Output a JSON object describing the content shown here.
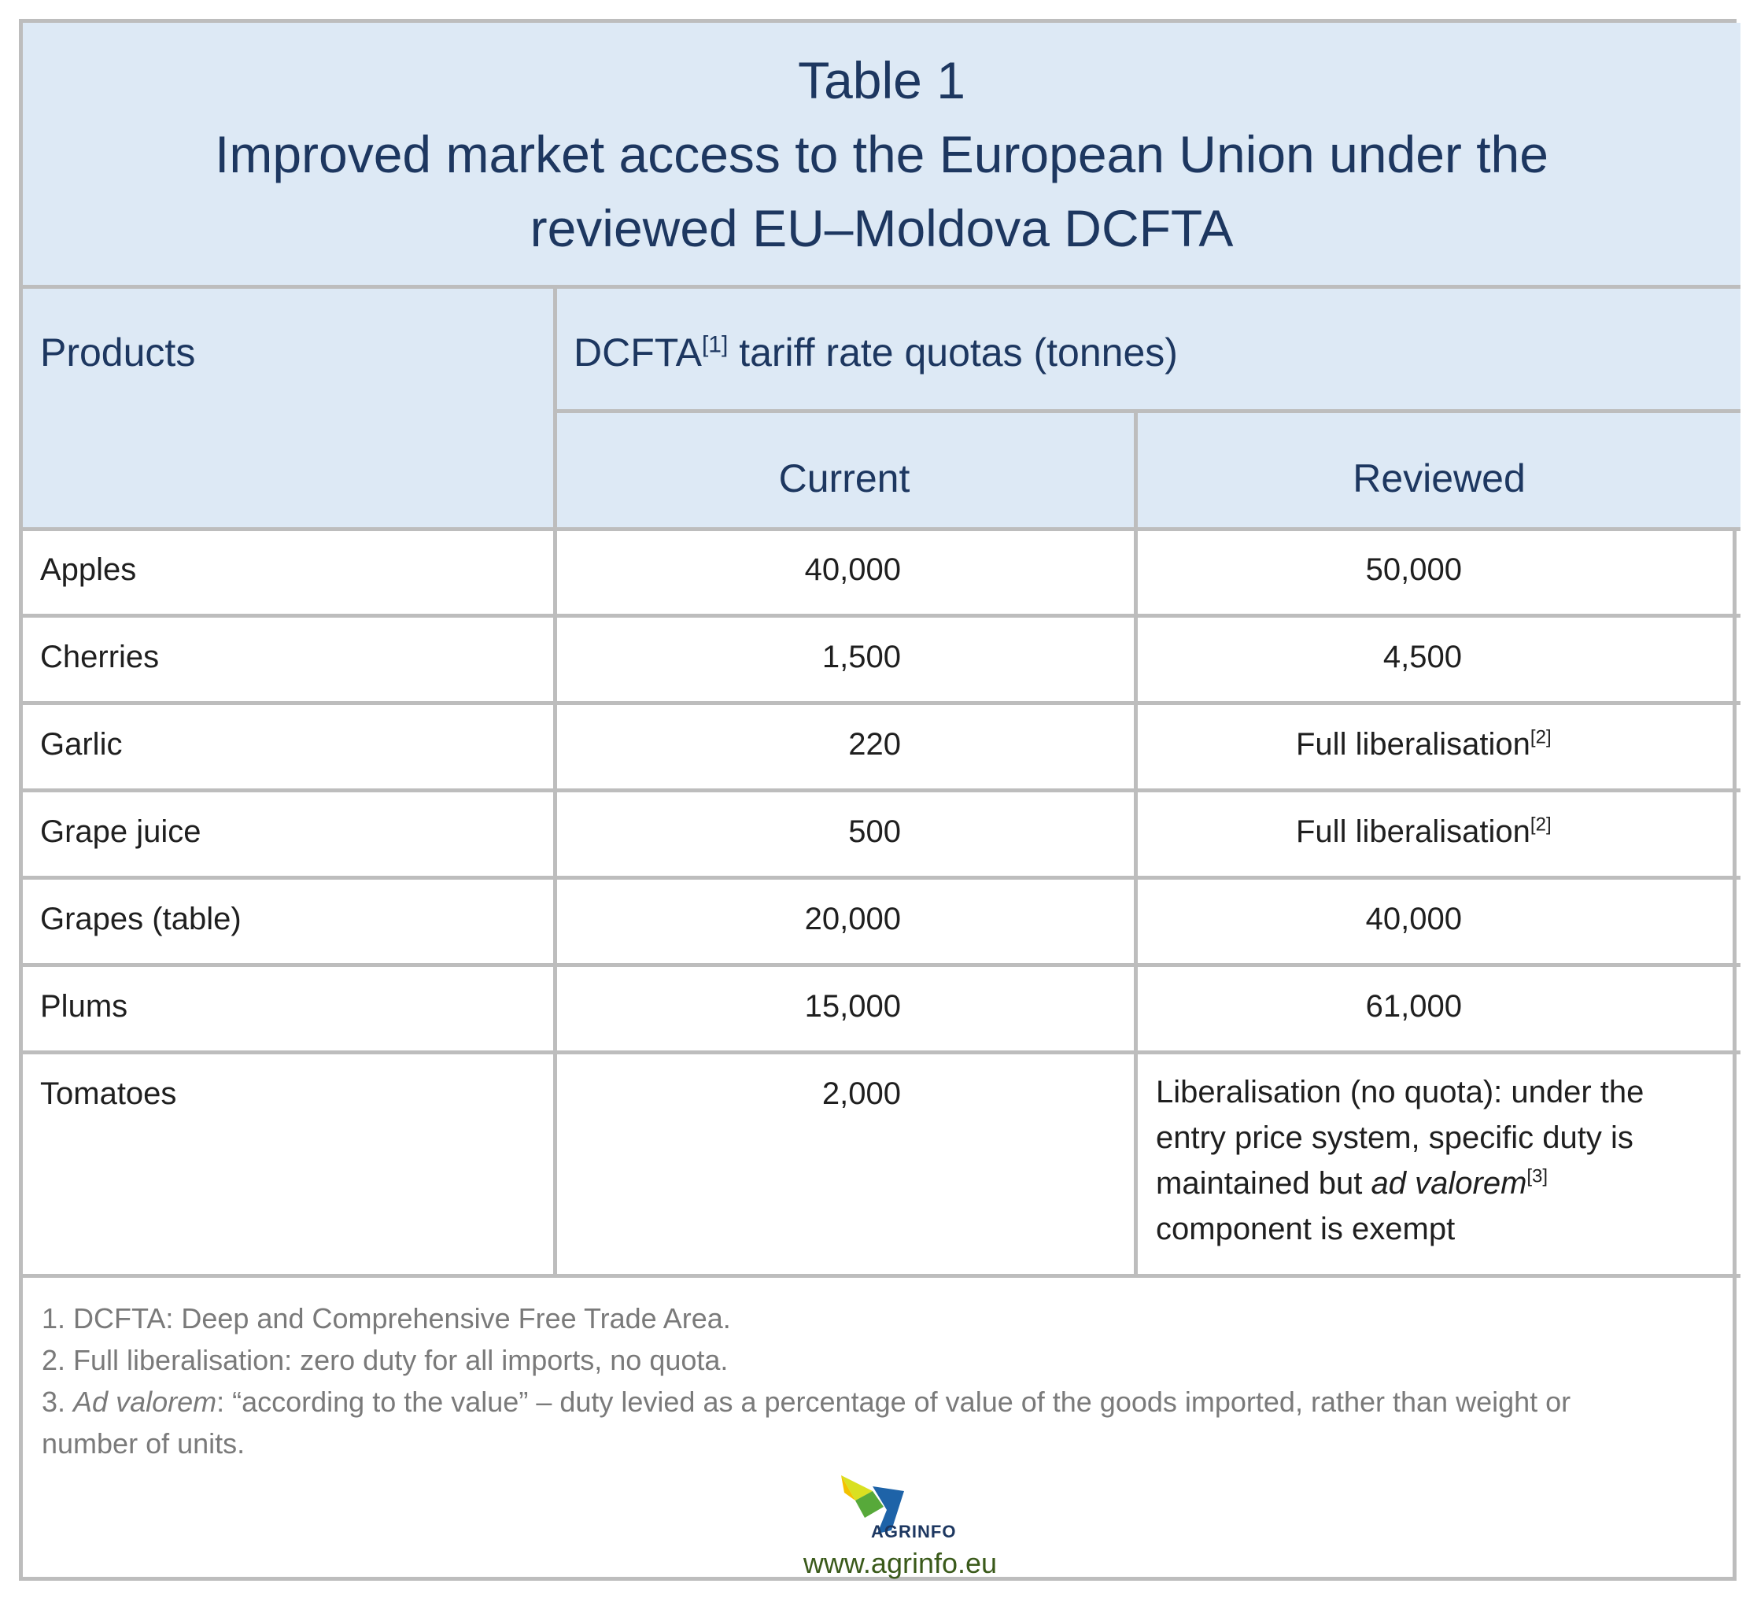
{
  "title": {
    "line1": "Table 1",
    "line2": "Improved market access to the European Union under the",
    "line3": "reviewed EU–Moldova DCFTA"
  },
  "header": {
    "products": "Products",
    "quota_label": "DCFTA",
    "quota_footnote": "[1]",
    "quota_rest": " tariff rate quotas (tonnes)",
    "current": "Current",
    "reviewed": "Reviewed"
  },
  "rows": [
    {
      "product": "Apples",
      "current": "40,000",
      "reviewed": "50,000",
      "reviewed_footnote": ""
    },
    {
      "product": "Cherries",
      "current": "1,500",
      "reviewed": "4,500",
      "reviewed_footnote": ""
    },
    {
      "product": "Garlic",
      "current": "220",
      "reviewed": "Full liberalisation",
      "reviewed_footnote": "[2]"
    },
    {
      "product": "Grape juice",
      "current": "500",
      "reviewed": "Full liberalisation",
      "reviewed_footnote": "[2]"
    },
    {
      "product": "Grapes (table)",
      "current": "20,000",
      "reviewed": "40,000",
      "reviewed_footnote": ""
    },
    {
      "product": "Plums",
      "current": "15,000",
      "reviewed": "61,000",
      "reviewed_footnote": ""
    },
    {
      "product": "Tomatoes",
      "current": "2,000",
      "reviewed": "",
      "reviewed_footnote": ""
    }
  ],
  "tomato_reviewed": {
    "line1": "Liberalisation (no quota): under the",
    "line2": "entry price system, specific duty is",
    "line3_a": "maintained but ",
    "line3_italic": "ad valorem",
    "line3_sup": "[3]",
    "line4": "component is exempt"
  },
  "notes": {
    "n1": "1. DCFTA: Deep and Comprehensive Free Trade Area.",
    "n2": "2. Full liberalisation: zero duty for all imports, no quota.",
    "n3_prefix": "3. ",
    "n3_italic": "Ad valorem",
    "n3_rest": ": “according to the value” – duty levied as a percentage of value of the goods imported, rather than weight or",
    "n3_line2": "number of units."
  },
  "footer": {
    "logo_text": "AGRINFO",
    "url": "www.agrinfo.eu"
  },
  "colors": {
    "header_bg": "#dde9f5",
    "header_text": "#1d3760",
    "border": "#bdbdbd",
    "note_text": "#7a7a7a"
  }
}
